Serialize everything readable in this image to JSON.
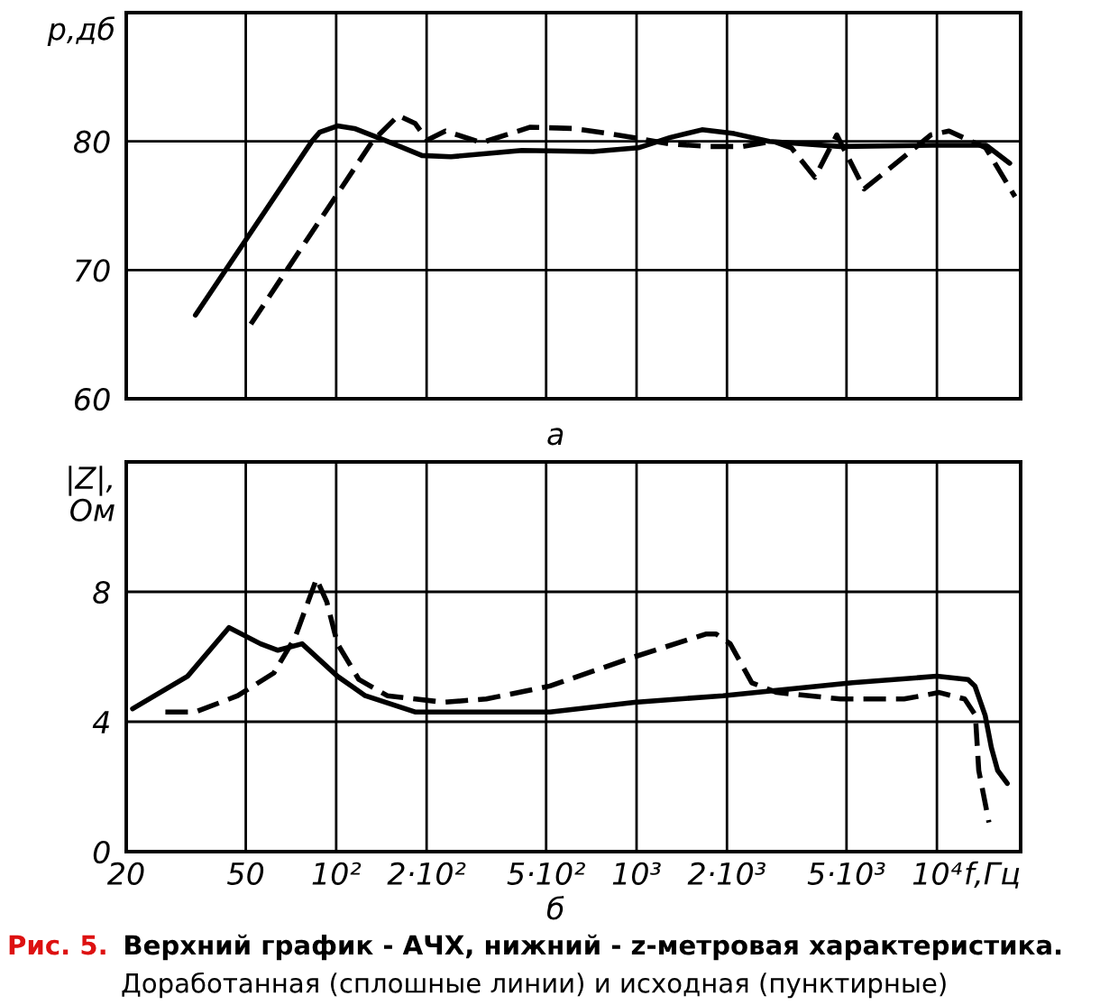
{
  "chart_data": [
    {
      "type": "line",
      "ylabel": "p,дб",
      "annotations": [
        "а"
      ],
      "log": "x",
      "xlim": [
        20,
        19000
      ],
      "xticks": [
        {
          "value": 20,
          "label": null
        },
        {
          "value": 50,
          "label": null
        },
        {
          "value": 100,
          "label": null
        },
        {
          "value": 200,
          "label": null
        },
        {
          "value": 500,
          "label": null
        },
        {
          "value": 1000,
          "label": null
        },
        {
          "value": 2000,
          "label": null
        },
        {
          "value": 5000,
          "label": null
        },
        {
          "value": 10000,
          "label": null
        }
      ],
      "ylim": [
        60,
        90
      ],
      "yticks": [
        60,
        70,
        80
      ],
      "grid": true,
      "tick_labels": "y",
      "series": [
        {
          "color": "#000000",
          "line_style": "solid",
          "x": [
            34,
            83,
            88,
            101,
            115,
            148,
            193,
            241,
            415,
            716,
            1014,
            1295,
            1652,
            2113,
            2768,
            4770,
            9660,
            14580,
            17470
          ],
          "values": [
            66.5,
            80.0,
            80.7,
            81.2,
            81.0,
            80.0,
            78.9,
            78.8,
            79.3,
            79.2,
            79.5,
            80.3,
            80.9,
            80.6,
            80.0,
            79.6,
            79.7,
            79.7,
            78.3
          ]
        },
        {
          "color": "#000000",
          "line_style": "dashed",
          "x": [
            52,
            132,
            161,
            183,
            201,
            231,
            305,
            443,
            614,
            811,
            1028,
            1285,
            1747,
            2248,
            2850,
            3275,
            3925,
            4640,
            5725,
            9550,
            10970,
            14520,
            18200
          ],
          "values": [
            65.8,
            80.0,
            82.0,
            81.4,
            80.1,
            80.8,
            79.9,
            81.1,
            81.0,
            80.6,
            80.2,
            79.8,
            79.6,
            79.6,
            80.0,
            79.5,
            77.2,
            80.5,
            76.3,
            80.5,
            80.8,
            79.5,
            75.7
          ]
        }
      ]
    },
    {
      "type": "line",
      "title": "Верхний график - АЧХ, нижний - z-метровая характеристика.",
      "ylabel": "|Z|,\nОм",
      "xlabel": "f,Гц",
      "annotations": [
        "б",
        "Рис. 5.",
        "Доработанная (сплошные линии) и исходная (пунктирные)"
      ],
      "log": "x",
      "xlim": [
        20,
        19000
      ],
      "xticks": [
        20,
        50,
        {
          "value": 100,
          "label": "10²"
        },
        {
          "value": 200,
          "label": "2·10²"
        },
        {
          "value": 500,
          "label": "5·10²"
        },
        {
          "value": 1000,
          "label": "10³"
        },
        {
          "value": 2000,
          "label": "2·10³"
        },
        {
          "value": 5000,
          "label": "5·10³"
        },
        {
          "value": 10000,
          "label": "10⁴"
        }
      ],
      "ylim": [
        0,
        12
      ],
      "yticks": [
        0,
        4,
        8
      ],
      "grid": true,
      "series": [
        {
          "color": "#000000",
          "line_style": "solid",
          "x": [
            21,
            32,
            44,
            56,
            64,
            77,
            101,
            125,
            183,
            515,
            985,
            1940,
            5230,
            9990,
            12700,
            13380,
            14470,
            15180,
            15930,
            17150
          ],
          "values": [
            4.4,
            5.4,
            6.9,
            6.4,
            6.2,
            6.4,
            5.4,
            4.8,
            4.3,
            4.3,
            4.6,
            4.8,
            5.2,
            5.4,
            5.3,
            5.1,
            4.2,
            3.2,
            2.5,
            2.1
          ]
        },
        {
          "color": "#000000",
          "line_style": "dashed",
          "x": [
            27,
            34,
            47,
            62,
            73,
            86,
            93,
            101,
            119,
            148,
            228,
            316,
            515,
            985,
            1700,
            1840,
            2050,
            2420,
            2930,
            4770,
            7770,
            10180,
            12370,
            13430,
            13780,
            14900
          ],
          "values": [
            4.3,
            4.3,
            4.8,
            5.5,
            6.6,
            8.4,
            7.7,
            6.4,
            5.3,
            4.8,
            4.6,
            4.7,
            5.1,
            6.0,
            6.7,
            6.7,
            6.4,
            5.2,
            4.9,
            4.7,
            4.7,
            4.9,
            4.7,
            4.2,
            2.5,
            0.9
          ]
        }
      ]
    }
  ]
}
